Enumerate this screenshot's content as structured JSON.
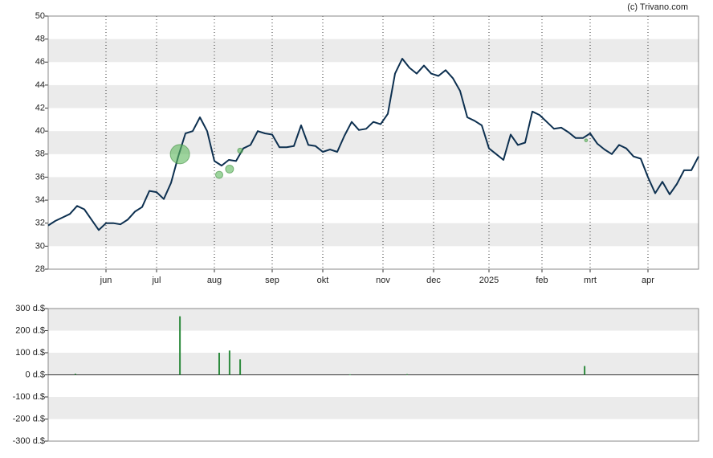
{
  "chart_data": [
    {
      "type": "line",
      "source": "(c) Trivano.com",
      "color": "#0d3050",
      "x": [
        0,
        3,
        6,
        9,
        12,
        15,
        18,
        21,
        24,
        27,
        30,
        33,
        36,
        39,
        42,
        45,
        48,
        51,
        54,
        57,
        60,
        63,
        66,
        69,
        72,
        75,
        78,
        81,
        84,
        87,
        90,
        93,
        96,
        99,
        102,
        105,
        108,
        111,
        114,
        117,
        120,
        123,
        126,
        129,
        132,
        135,
        138,
        141,
        144,
        147,
        150,
        153,
        156,
        159,
        162,
        165,
        168,
        171,
        174,
        177,
        180,
        183,
        186,
        189,
        192,
        195,
        198,
        201,
        204,
        207,
        210,
        213,
        216,
        219,
        222,
        225,
        228,
        231,
        234,
        237,
        240,
        243,
        246,
        249,
        252,
        255,
        258,
        261,
        264,
        267,
        270
      ],
      "values": [
        31.8,
        32.2,
        32.5,
        32.8,
        33.5,
        33.2,
        32.3,
        31.4,
        32,
        32,
        31.9,
        32.3,
        33,
        33.4,
        34.8,
        34.7,
        34.1,
        35.5,
        37.8,
        39.8,
        40,
        41.2,
        40,
        37.4,
        37,
        37.5,
        37.4,
        38.5,
        38.8,
        40,
        39.8,
        39.7,
        38.6,
        38.6,
        38.7,
        40.5,
        38.8,
        38.7,
        38.2,
        38.4,
        38.2,
        39.6,
        40.8,
        40.1,
        40.2,
        40.8,
        40.6,
        41.5,
        45,
        46.3,
        45.5,
        45,
        45.7,
        45,
        44.8,
        45.3,
        44.6,
        43.5,
        41.2,
        40.9,
        40.5,
        38.5,
        38,
        37.5,
        39.7,
        38.8,
        39,
        41.7,
        41.4,
        40.8,
        40.2,
        40.3,
        39.9,
        39.4,
        39.4,
        39.8,
        38.9,
        38.4,
        38,
        38.8,
        38.5,
        37.8,
        37.6,
        36,
        34.6,
        35.6,
        34.5,
        35.4,
        36.6,
        36.6,
        37.8
      ],
      "markers": {
        "color": "#5cb85c",
        "x": [
          54.7,
          71,
          75.3,
          79.7,
          223.3
        ],
        "values": [
          38,
          36.2,
          36.7,
          38.3,
          39.2
        ],
        "sizes": [
          265,
          100,
          110,
          70,
          40
        ]
      },
      "xlim": [
        0,
        270
      ],
      "xticks": [
        {
          "value": 24,
          "label": "jun"
        },
        {
          "value": 45,
          "label": "jul"
        },
        {
          "value": 69,
          "label": "aug"
        },
        {
          "value": 93,
          "label": "sep"
        },
        {
          "value": 114,
          "label": "okt"
        },
        {
          "value": 139,
          "label": "nov"
        },
        {
          "value": 160,
          "label": "dec"
        },
        {
          "value": 183,
          "label": "2025"
        },
        {
          "value": 205,
          "label": "feb"
        },
        {
          "value": 225,
          "label": "mrt"
        },
        {
          "value": 249,
          "label": "apr"
        }
      ],
      "ylim": [
        28,
        50
      ],
      "yticks": [
        28,
        30,
        32,
        34,
        36,
        38,
        40,
        42,
        44,
        46,
        48,
        50
      ],
      "bands": true
    },
    {
      "type": "bar",
      "color": "#2e8b3e",
      "x": [
        11.3,
        54.7,
        71,
        75.3,
        79.7,
        125.3,
        149,
        222.7
      ],
      "values": [
        5,
        265,
        100,
        110,
        70,
        2,
        3,
        40
      ],
      "xlim": [
        0,
        270
      ],
      "ylim": [
        -300,
        300
      ],
      "yticks": [
        {
          "value": -300,
          "label": "-300 d.$"
        },
        {
          "value": -200,
          "label": "-200 d.$"
        },
        {
          "value": -100,
          "label": "-100 d.$"
        },
        {
          "value": 0,
          "label": "0 d.$"
        },
        {
          "value": 100,
          "label": "100 d.$"
        },
        {
          "value": 200,
          "label": "200 d.$"
        },
        {
          "value": 300,
          "label": "300 d.$"
        }
      ],
      "bands": true
    }
  ]
}
